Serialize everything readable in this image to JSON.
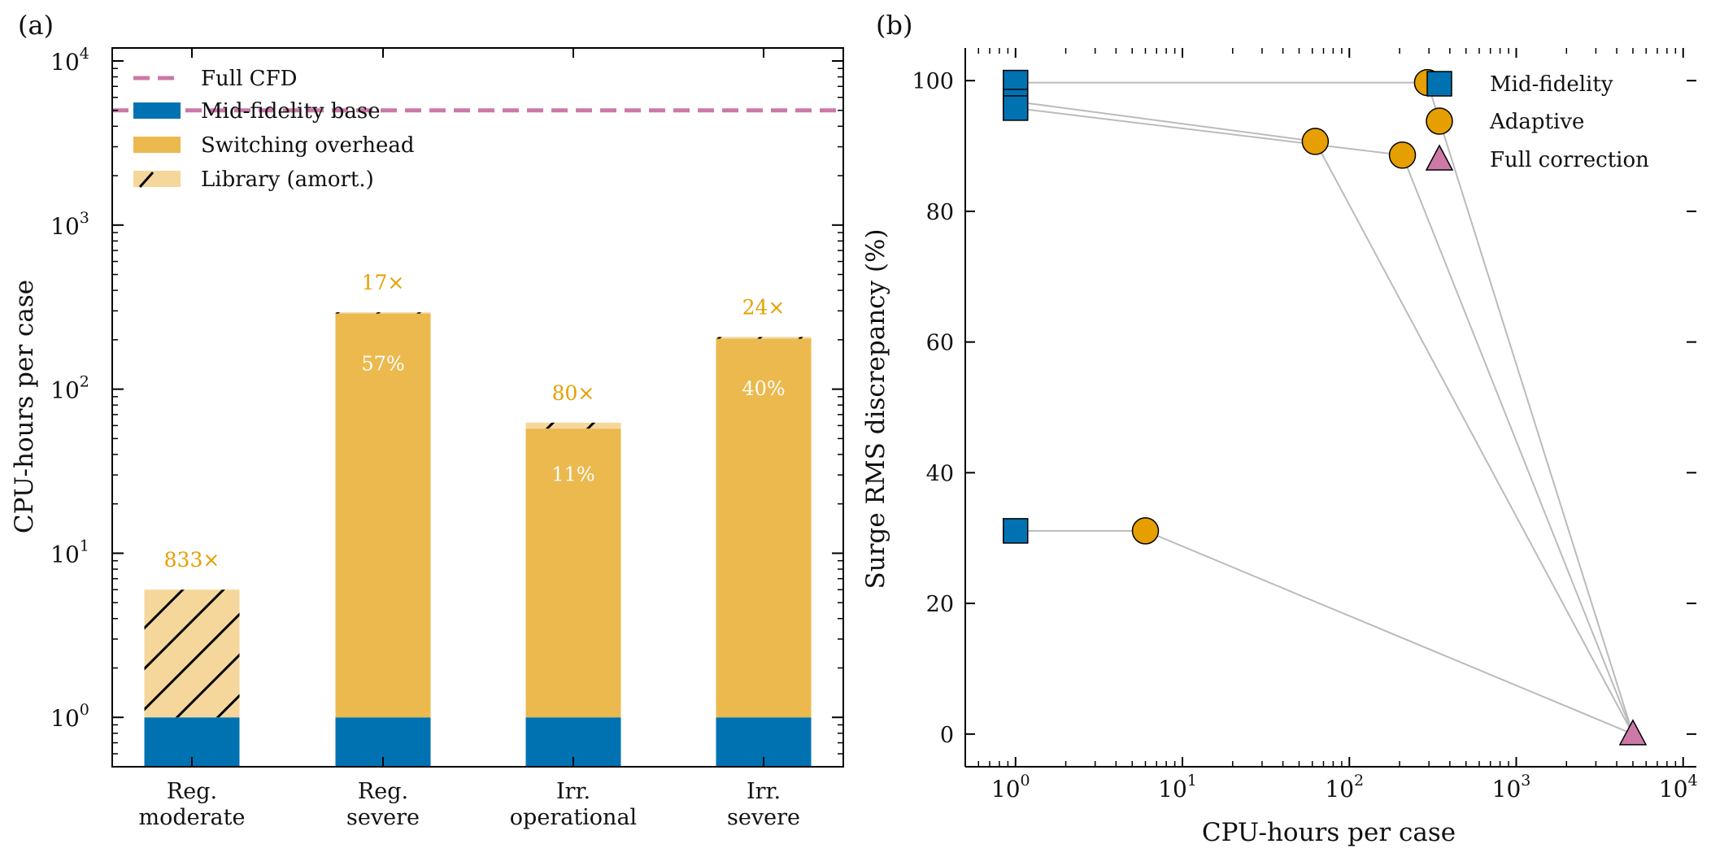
{
  "colors": {
    "mid_fidelity": "#0072B2",
    "switching": "#EBB94E",
    "library": "#F5D79B",
    "full_cfd": "#CC79A7",
    "adaptive": "#E69F00",
    "annotation": "#E69F00",
    "connector": "#BBBBBB"
  },
  "chart_data": [
    {
      "panel_label": "(a)",
      "type": "bar",
      "stacked": true,
      "yscale": "log",
      "ylabel": "CPU-hours per case",
      "ylim": [
        0.5,
        12000
      ],
      "yticks": [
        1,
        10,
        100,
        1000,
        10000
      ],
      "ytick_labels": [
        [
          "10",
          "0"
        ],
        [
          "10",
          "1"
        ],
        [
          "10",
          "2"
        ],
        [
          "10",
          "3"
        ],
        [
          "10",
          "4"
        ]
      ],
      "categories": [
        [
          "Reg.",
          "moderate"
        ],
        [
          "Reg.",
          "severe"
        ],
        [
          "Irr.",
          "operational"
        ],
        [
          "Irr.",
          "severe"
        ]
      ],
      "series": [
        {
          "name": "Mid-fidelity base",
          "values": [
            1,
            1,
            1,
            1
          ]
        },
        {
          "name": "Switching overhead",
          "values": [
            0,
            288,
            56.5,
            202
          ]
        },
        {
          "name": "Library (amort.)",
          "values": [
            5,
            5,
            5,
            5
          ],
          "hatch": "/"
        }
      ],
      "reference_line": {
        "name": "Full CFD",
        "value": 5000,
        "style": "dashed"
      },
      "speedup_labels": [
        "833×",
        "17×",
        "80×",
        "24×"
      ],
      "percent_labels": [
        "",
        "57%",
        "11%",
        "40%"
      ],
      "legend": [
        "Full CFD",
        "Mid-fidelity base",
        "Switching overhead",
        "Library (amort.)"
      ],
      "legend_position": "upper-left",
      "grid": false
    },
    {
      "panel_label": "(b)",
      "type": "scatter",
      "xscale": "log",
      "xlabel": "CPU-hours per case",
      "ylabel": "Surge RMS discrepancy (%)",
      "xlim": [
        0.5,
        12000
      ],
      "ylim": [
        -5,
        105
      ],
      "xticks": [
        1,
        10,
        100,
        1000,
        10000
      ],
      "xtick_labels": [
        [
          "10",
          "0"
        ],
        [
          "10",
          "1"
        ],
        [
          "10",
          "2"
        ],
        [
          "10",
          "3"
        ],
        [
          "10",
          "4"
        ]
      ],
      "yticks": [
        0,
        20,
        40,
        60,
        80,
        100
      ],
      "ytick_labels": [
        "0",
        "20",
        "40",
        "60",
        "80",
        "100"
      ],
      "series": [
        {
          "name": "Mid-fidelity",
          "marker": "square",
          "x": [
            1,
            1,
            1,
            1
          ],
          "y": [
            31.1,
            99.7,
            96.8,
            95.8
          ]
        },
        {
          "name": "Adaptive",
          "marker": "circle",
          "x": [
            6,
            294,
            62.5,
            208
          ],
          "y": [
            31.1,
            99.7,
            90.7,
            88.6
          ]
        },
        {
          "name": "Full correction",
          "marker": "triangle",
          "x": [
            5000
          ],
          "y": [
            0
          ]
        }
      ],
      "connections": [
        [
          [
            1,
            31.1
          ],
          [
            6,
            31.1
          ],
          [
            5000,
            0
          ]
        ],
        [
          [
            1,
            99.7
          ],
          [
            294,
            99.7
          ],
          [
            5000,
            0
          ]
        ],
        [
          [
            1,
            96.8
          ],
          [
            62.5,
            90.7
          ],
          [
            5000,
            0
          ]
        ],
        [
          [
            1,
            95.8
          ],
          [
            208,
            88.6
          ],
          [
            5000,
            0
          ]
        ]
      ],
      "legend": [
        "Mid-fidelity",
        "Adaptive",
        "Full correction"
      ],
      "legend_position": "upper-right",
      "grid": false
    }
  ]
}
